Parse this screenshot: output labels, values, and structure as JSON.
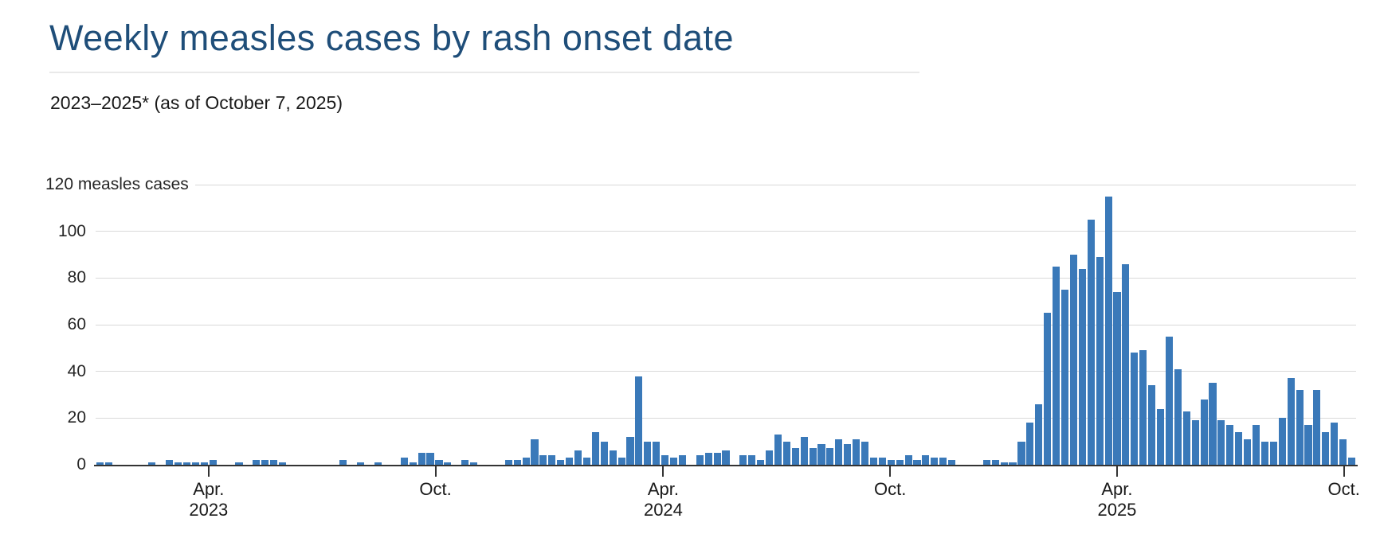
{
  "page": {
    "title": "Weekly measles cases by rash onset date",
    "subtitle": "2023–2025* (as of October 7, 2025)"
  },
  "colors": {
    "title": "#1f4e79",
    "text": "#1a1a1a",
    "axis_text": "#262626",
    "gridline": "#d9d9d9",
    "axis_line": "#333333",
    "bar": "#3a79b9",
    "title_rule": "#e9e9e9"
  },
  "chart_data": {
    "type": "bar",
    "title": "Weekly measles cases by rash onset date",
    "subtitle": "2023–2025* (as of October 7, 2025)",
    "ylabel_top": "120 measles cases",
    "xlabel": "",
    "ylabel": "measles cases",
    "ylim": [
      0,
      120
    ],
    "yticks": [
      0,
      20,
      40,
      60,
      80,
      100,
      120
    ],
    "grid": true,
    "x_unit": "week of rash onset, Jan 2023 – Oct 2025",
    "bar_color": "#3a79b9",
    "xticks": [
      {
        "line1": "Apr.",
        "line2": "2023",
        "pos": 13.0
      },
      {
        "line1": "Oct.",
        "line2": "",
        "pos": 39.1
      },
      {
        "line1": "Apr.",
        "line2": "2024",
        "pos": 65.3
      },
      {
        "line1": "Oct.",
        "line2": "",
        "pos": 91.4
      },
      {
        "line1": "Apr.",
        "line2": "2025",
        "pos": 117.5
      },
      {
        "line1": "Oct.",
        "line2": "",
        "pos": 143.6
      }
    ],
    "values": [
      1,
      1,
      0,
      0,
      0,
      0,
      1,
      0,
      2,
      1,
      1,
      1,
      1,
      2,
      0,
      0,
      1,
      0,
      2,
      2,
      2,
      1,
      0,
      0,
      0,
      0,
      0,
      0,
      2,
      0,
      1,
      0,
      1,
      0,
      0,
      3,
      1,
      5,
      5,
      2,
      1,
      0,
      2,
      1,
      0,
      0,
      0,
      2,
      2,
      3,
      11,
      4,
      4,
      2,
      3,
      6,
      3,
      14,
      10,
      6,
      3,
      12,
      38,
      10,
      10,
      4,
      3,
      4,
      0,
      4,
      5,
      5,
      6,
      0,
      4,
      4,
      2,
      6,
      13,
      10,
      7,
      12,
      7,
      9,
      7,
      11,
      9,
      11,
      10,
      3,
      3,
      2,
      2,
      4,
      2,
      4,
      3,
      3,
      2,
      0,
      0,
      0,
      2,
      2,
      1,
      1,
      10,
      18,
      26,
      65,
      85,
      75,
      90,
      84,
      105,
      89,
      115,
      74,
      86,
      48,
      49,
      34,
      24,
      55,
      41,
      23,
      19,
      28,
      35,
      19,
      17,
      14,
      11,
      17,
      10,
      10,
      20,
      37,
      32,
      17,
      32,
      14,
      18,
      11,
      3
    ]
  }
}
